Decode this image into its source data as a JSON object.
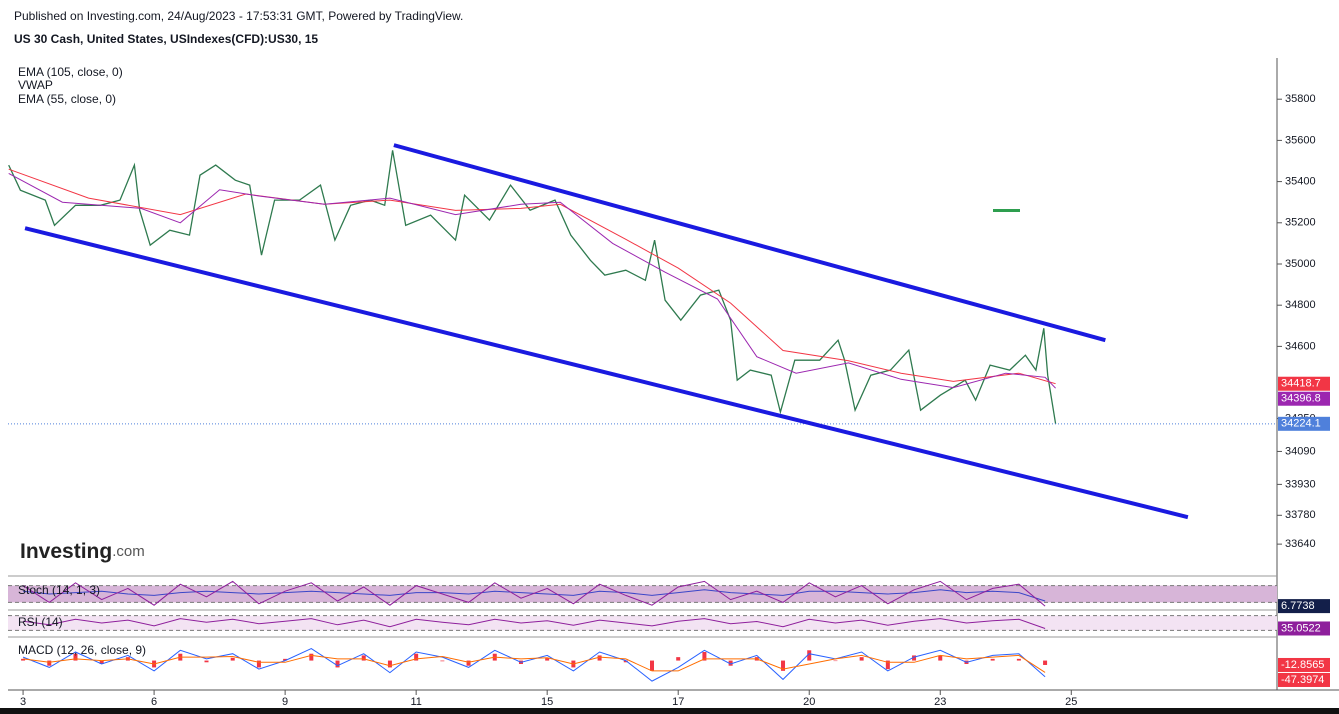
{
  "logo": [
    "Investing",
    ".com"
  ],
  "chart_data": [
    {
      "type": "line",
      "published": "Published on Investing.com, 24/Aug/2023 - 17:53:31 GMT, Powered by TradingView.",
      "title": "US 30 Cash, United States, USIndexes(CFD):US30, 15",
      "vwap_label": "VWAP",
      "xlim": [
        -0.115,
        9.57
      ],
      "xticks": [
        {
          "value": 0,
          "label": "3"
        },
        {
          "value": 1,
          "label": "6"
        },
        {
          "value": 2,
          "label": "9"
        },
        {
          "value": 3,
          "label": "11"
        },
        {
          "value": 4,
          "label": "15"
        },
        {
          "value": 5,
          "label": "17"
        },
        {
          "value": 6,
          "label": "20"
        },
        {
          "value": 7,
          "label": "23"
        },
        {
          "value": 8,
          "label": "25"
        }
      ],
      "ylim": [
        33495,
        36000
      ],
      "yticks": [
        33640,
        33780,
        33930,
        34090,
        34250,
        34600,
        34800,
        35000,
        35200,
        35400,
        35600,
        35800
      ],
      "series": [
        {
          "color": "#2f7a4f",
          "tag": "#4f80db",
          "last_line": true,
          "x": [
            -0.11,
            -0.02,
            0.17,
            0.24,
            0.4,
            0.59,
            0.74,
            0.85,
            0.89,
            0.97,
            1.12,
            1.27,
            1.35,
            1.47,
            1.62,
            1.73,
            1.82,
            1.92,
            2.11,
            2.27,
            2.38,
            2.5,
            2.65,
            2.76,
            2.82,
            2.92,
            3.11,
            3.3,
            3.37,
            3.56,
            3.72,
            3.87,
            4.06,
            4.18,
            4.33,
            4.44,
            4.6,
            4.75,
            4.82,
            4.9,
            5.02,
            5.17,
            5.31,
            5.4,
            5.45,
            5.55,
            5.71,
            5.78,
            5.89,
            6.08,
            6.22,
            6.27,
            6.35,
            6.47,
            6.62,
            6.76,
            6.85,
            7.0,
            7.19,
            7.27,
            7.38,
            7.53,
            7.65,
            7.73,
            7.79,
            7.82,
            7.88
          ],
          "values": [
            35480,
            35358,
            35310,
            35188,
            35285,
            35285,
            35310,
            35480,
            35261,
            35091,
            35164,
            35140,
            35431,
            35480,
            35407,
            35383,
            35043,
            35310,
            35310,
            35383,
            35116,
            35285,
            35310,
            35285,
            35552,
            35188,
            35237,
            35116,
            35334,
            35213,
            35383,
            35261,
            35310,
            35140,
            35018,
            34946,
            34970,
            34921,
            35116,
            34824,
            34727,
            34849,
            34873,
            34727,
            34436,
            34485,
            34460,
            34281,
            34533,
            34533,
            34630,
            34533,
            34290,
            34460,
            34485,
            34582,
            34290,
            34363,
            34436,
            34339,
            34509,
            34485,
            34557,
            34485,
            34688,
            34460,
            34224.1
          ]
        },
        {
          "name": "EMA (105, close, 0)",
          "color": "#f23645",
          "tag": "#f23645",
          "x": [
            -0.11,
            0.5,
            1.2,
            1.7,
            2.3,
            2.8,
            3.3,
            3.8,
            4.1,
            4.6,
            5.0,
            5.4,
            5.8,
            6.3,
            6.7,
            7.1,
            7.6,
            7.88
          ],
          "values": [
            35460,
            35320,
            35240,
            35340,
            35290,
            35310,
            35260,
            35270,
            35290,
            35120,
            34980,
            34810,
            34580,
            34530,
            34470,
            34430,
            34470,
            34418.7
          ]
        },
        {
          "name": "EMA (55, close, 0)",
          "color": "#9c27b0",
          "tag": "#9c27b0",
          "x": [
            -0.11,
            0.3,
            0.9,
            1.2,
            1.5,
            1.8,
            2.3,
            2.8,
            3.3,
            3.8,
            4.1,
            4.5,
            4.9,
            5.3,
            5.6,
            5.9,
            6.3,
            6.7,
            7.1,
            7.5,
            7.8,
            7.88
          ],
          "values": [
            35440,
            35300,
            35270,
            35200,
            35360,
            35330,
            35290,
            35320,
            35240,
            35290,
            35300,
            35100,
            34960,
            34830,
            34550,
            34470,
            34520,
            34440,
            34400,
            34470,
            34450,
            34396.8
          ]
        }
      ],
      "trendlines": [
        {
          "color": "#1a1ae0",
          "x": [
            2.83,
            8.26
          ],
          "y": [
            35577,
            34630
          ]
        },
        {
          "color": "#1a1ae0",
          "x": [
            0.015,
            8.89
          ],
          "y": [
            35174,
            33771
          ]
        }
      ]
    },
    {
      "type": "line",
      "title": "Stoch (14, 1, 3)",
      "ylim": [
        0,
        100
      ],
      "hlines": [
        20,
        80
      ],
      "band_color": "#d7b5d8",
      "x": [
        0,
        0.2,
        0.4,
        0.6,
        0.8,
        1,
        1.2,
        1.4,
        1.6,
        1.8,
        2,
        2.2,
        2.4,
        2.6,
        2.8,
        3,
        3.2,
        3.4,
        3.6,
        3.8,
        4,
        4.2,
        4.4,
        4.6,
        4.8,
        5,
        5.2,
        5.4,
        5.6,
        5.8,
        6,
        6.2,
        6.4,
        6.6,
        6.8,
        7,
        7.2,
        7.4,
        7.6,
        7.8
      ],
      "series": [
        {
          "color": "#3b46c8",
          "values": [
            60,
            50,
            55,
            60,
            50,
            45,
            55,
            60,
            55,
            50,
            55,
            60,
            55,
            50,
            45,
            55,
            55,
            50,
            60,
            55,
            50,
            45,
            60,
            55,
            45,
            55,
            65,
            55,
            50,
            45,
            60,
            60,
            55,
            50,
            55,
            65,
            55,
            60,
            55,
            25
          ]
        },
        {
          "color": "#8e1f9c",
          "tag": "#131f4a",
          "values": [
            80,
            20,
            90,
            30,
            70,
            10,
            85,
            40,
            95,
            15,
            60,
            90,
            25,
            75,
            10,
            80,
            50,
            20,
            90,
            35,
            70,
            15,
            85,
            45,
            10,
            75,
            95,
            30,
            60,
            20,
            90,
            40,
            80,
            15,
            65,
            95,
            30,
            70,
            85,
            6.7738
          ]
        }
      ]
    },
    {
      "type": "line",
      "title": "RSI (14)",
      "ylim": [
        20,
        80
      ],
      "hlines": [
        30,
        70
      ],
      "band_color": "#f3e3f3",
      "x": [
        0,
        0.2,
        0.4,
        0.6,
        0.8,
        1,
        1.2,
        1.4,
        1.6,
        1.8,
        2,
        2.2,
        2.4,
        2.6,
        2.8,
        3,
        3.2,
        3.4,
        3.6,
        3.8,
        4,
        4.2,
        4.4,
        4.6,
        4.8,
        5,
        5.2,
        5.4,
        5.6,
        5.8,
        6,
        6.2,
        6.4,
        6.6,
        6.8,
        7,
        7.2,
        7.4,
        7.6,
        7.8
      ],
      "series": [
        {
          "color": "#8e1f9c",
          "tag": "#8e1f9c",
          "values": [
            55,
            45,
            60,
            50,
            58,
            42,
            62,
            52,
            60,
            48,
            55,
            62,
            45,
            58,
            40,
            60,
            52,
            45,
            60,
            50,
            56,
            44,
            58,
            50,
            42,
            55,
            62,
            48,
            54,
            40,
            60,
            50,
            58,
            44,
            55,
            62,
            50,
            56,
            60,
            35.0522
          ]
        }
      ]
    },
    {
      "type": "line",
      "title": "MACD (12, 26, close, 9)",
      "ylim": [
        -80,
        60
      ],
      "x": [
        0,
        0.2,
        0.4,
        0.6,
        0.8,
        1,
        1.2,
        1.4,
        1.6,
        1.8,
        2,
        2.2,
        2.4,
        2.6,
        2.8,
        3,
        3.2,
        3.4,
        3.6,
        3.8,
        4,
        4.2,
        4.4,
        4.6,
        4.8,
        5,
        5.2,
        5.4,
        5.6,
        5.8,
        6,
        6.2,
        6.4,
        6.6,
        6.8,
        7,
        7.2,
        7.4,
        7.6,
        7.8
      ],
      "series": [
        {
          "kind": "histogram",
          "color": "#f23645",
          "tag": "#f23645",
          "values": [
            5,
            -15,
            20,
            -10,
            10,
            -20,
            20,
            -5,
            8,
            -20,
            5,
            20,
            -20,
            15,
            -20,
            20,
            -2,
            -15,
            20,
            -10,
            7,
            -20,
            15,
            -5,
            -30,
            10,
            25,
            -15,
            10,
            -30,
            30,
            0,
            10,
            -25,
            15,
            15,
            -10,
            5,
            5,
            -12.8565
          ]
        },
        {
          "color": "#2962ff",
          "tag": "#f23645",
          "values": [
            10,
            -20,
            25,
            -10,
            15,
            -30,
            30,
            5,
            20,
            -25,
            0,
            35,
            -15,
            20,
            -35,
            25,
            10,
            -20,
            30,
            -5,
            15,
            -30,
            25,
            0,
            -60,
            -20,
            30,
            -10,
            15,
            -55,
            20,
            5,
            25,
            -30,
            10,
            30,
            -5,
            15,
            20,
            -47.3974
          ]
        },
        {
          "color": "#ff6d00",
          "values": [
            5,
            -5,
            5,
            0,
            5,
            -10,
            10,
            10,
            12,
            -5,
            -5,
            15,
            5,
            5,
            -15,
            5,
            12,
            -5,
            10,
            5,
            8,
            -10,
            10,
            5,
            -30,
            -30,
            5,
            5,
            5,
            -25,
            -10,
            5,
            15,
            -5,
            -5,
            15,
            5,
            10,
            15,
            -34.5409
          ]
        }
      ]
    }
  ]
}
